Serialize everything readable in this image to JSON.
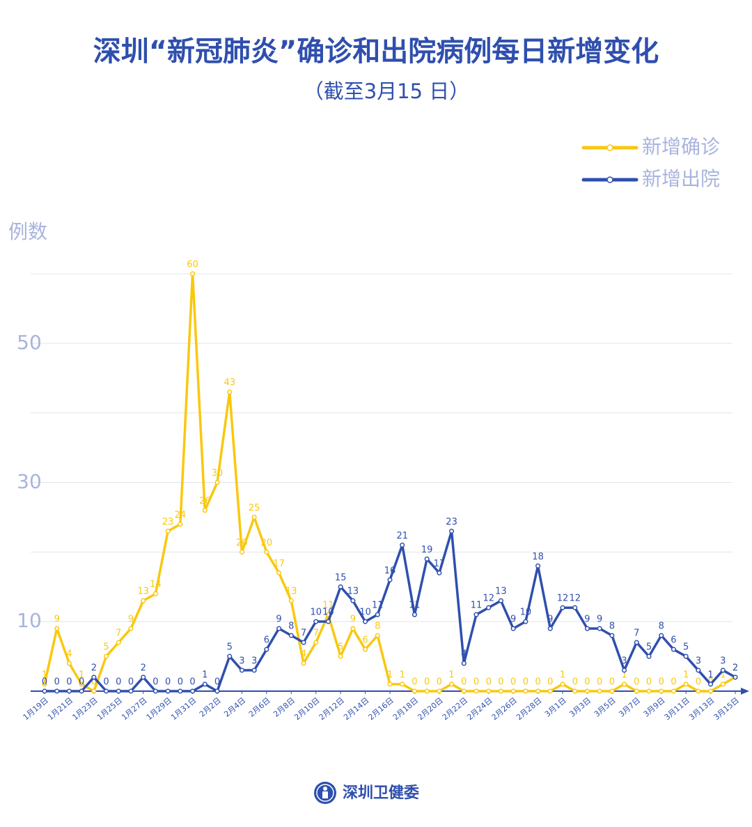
{
  "chart_data": {
    "type": "line",
    "title": "深圳“新冠肺炎”确诊和出院病例每日新增变化",
    "subtitle": "（截至3月15 日）",
    "y_label": "例数",
    "categories": [
      "1月19日",
      null,
      "1月21日",
      null,
      "1月23日",
      null,
      "1月25日",
      null,
      "1月27日",
      null,
      "1月29日",
      null,
      "1月31日",
      null,
      "2月2日",
      null,
      "2月4日",
      null,
      "2月6日",
      null,
      "2月8日",
      null,
      "2月10日",
      null,
      "2月12日",
      null,
      "2月14日",
      null,
      "2月16日",
      null,
      "2月18日",
      null,
      "2月20日",
      null,
      "2月22日",
      null,
      "2月24日",
      null,
      "2月26日",
      null,
      "2月28日",
      null,
      "3月1日",
      null,
      "3月3日",
      null,
      "3月5日",
      null,
      "3月7日",
      null,
      "3月9日",
      null,
      "3月11日",
      null,
      "3月13日",
      null,
      "3月15日"
    ],
    "series": [
      {
        "name": "新增确诊",
        "color": "#f9c80e",
        "values": [
          1,
          9,
          4,
          1,
          0,
          5,
          7,
          9,
          13,
          14,
          23,
          24,
          60,
          26,
          30,
          43,
          20,
          25,
          20,
          17,
          13,
          4,
          7,
          11,
          5,
          9,
          6,
          8,
          1,
          1,
          0,
          0,
          0,
          1,
          0,
          0,
          0,
          0,
          0,
          0,
          0,
          0,
          1,
          0,
          0,
          0,
          0,
          1,
          0,
          0,
          0,
          0,
          1,
          0,
          0,
          1,
          2
        ]
      },
      {
        "name": "新增出院",
        "color": "#2f4fae",
        "values": [
          0,
          0,
          0,
          0,
          2,
          0,
          0,
          0,
          2,
          0,
          0,
          0,
          0,
          1,
          0,
          5,
          3,
          3,
          6,
          9,
          8,
          7,
          10,
          10,
          15,
          13,
          10,
          11,
          16,
          21,
          11,
          19,
          17,
          23,
          4,
          11,
          12,
          13,
          9,
          10,
          18,
          9,
          12,
          12,
          9,
          9,
          8,
          3,
          7,
          5,
          8,
          6,
          5,
          3,
          1,
          3,
          2
        ]
      }
    ],
    "ylim": [
      0,
      60
    ],
    "yticks": [
      10,
      30,
      50
    ],
    "grid_lines": [
      10,
      20,
      30,
      40,
      50,
      60
    ],
    "grid": true,
    "legend": "top-right"
  },
  "footer": "深圳卫健委"
}
